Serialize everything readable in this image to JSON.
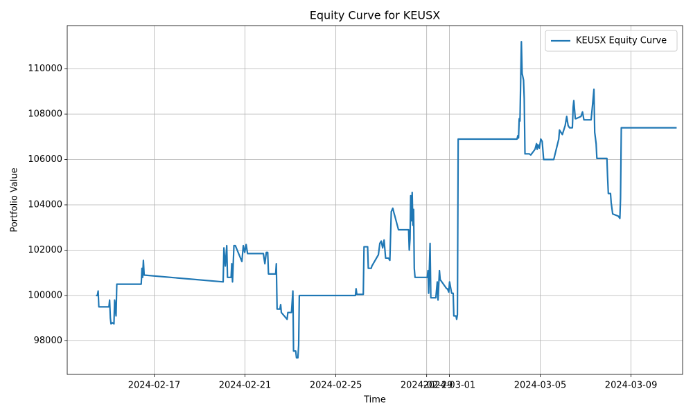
{
  "chart_data": {
    "type": "line",
    "title": "Equity Curve for KEUSX",
    "x_label": "Time",
    "y_label": "Portfolio Value",
    "x": [
      "2024-02-14 10:30",
      "2024-02-14 12:00",
      "2024-02-14 12:48",
      "2024-02-14 13:30",
      "2024-02-15 00:12",
      "2024-02-15 00:54",
      "2024-02-15 01:42",
      "2024-02-15 02:24",
      "2024-02-15 03:54",
      "2024-02-15 05:30",
      "2024-02-15 06:12",
      "2024-02-15 07:42",
      "2024-02-15 08:30",
      "2024-02-16 10:18",
      "2024-02-16 11:06",
      "2024-02-16 11:48",
      "2024-02-16 12:36",
      "2024-02-16 13:24",
      "2024-02-20 00:54",
      "2024-02-20 01:42",
      "2024-02-20 03:12",
      "2024-02-20 04:42",
      "2024-02-20 05:30",
      "2024-02-20 09:18",
      "2024-02-20 10:00",
      "2024-02-20 10:48",
      "2024-02-20 12:18",
      "2024-02-20 13:48",
      "2024-02-20 20:42",
      "2024-02-20 22:12",
      "2024-02-20 23:42",
      "2024-02-21 01:12",
      "2024-02-21 02:42",
      "2024-02-21 19:24",
      "2024-02-21 21:00",
      "2024-02-21 22:30",
      "2024-02-22 00:00",
      "2024-02-22 00:48",
      "2024-02-22 08:24",
      "2024-02-22 09:06",
      "2024-02-22 09:54",
      "2024-02-22 12:54",
      "2024-02-22 13:42",
      "2024-02-22 14:24",
      "2024-02-22 20:30",
      "2024-02-22 21:18",
      "2024-02-23 01:06",
      "2024-02-23 02:36",
      "2024-02-23 03:18",
      "2024-02-23 05:36",
      "2024-02-23 06:24",
      "2024-02-23 07:54",
      "2024-02-23 08:42",
      "2024-02-23 09:24",
      "2024-02-25 20:42",
      "2024-02-25 21:24",
      "2024-02-25 22:12",
      "2024-02-26 05:00",
      "2024-02-26 05:48",
      "2024-02-26 09:36",
      "2024-02-26 10:18",
      "2024-02-26 13:24",
      "2024-02-26 14:06",
      "2024-02-26 21:00",
      "2024-02-26 22:30",
      "2024-02-27 00:00",
      "2024-02-27 01:30",
      "2024-02-27 03:00",
      "2024-02-27 04:36",
      "2024-02-27 07:36",
      "2024-02-27 09:06",
      "2024-02-27 10:36",
      "2024-02-27 12:12",
      "2024-02-27 13:42",
      "2024-02-27 14:24",
      "2024-02-27 18:12",
      "2024-02-28 04:54",
      "2024-02-28 05:36",
      "2024-02-28 06:24",
      "2024-02-28 07:06",
      "2024-02-28 07:54",
      "2024-02-28 08:42",
      "2024-02-28 09:24",
      "2024-02-28 10:12",
      "2024-02-28 10:54",
      "2024-02-28 11:42",
      "2024-02-29 00:36",
      "2024-02-29 01:24",
      "2024-02-29 02:06",
      "2024-02-29 03:36",
      "2024-02-29 04:24",
      "2024-02-29 09:42",
      "2024-02-29 11:12",
      "2024-02-29 12:00",
      "2024-02-29 13:30",
      "2024-02-29 14:18",
      "2024-02-29 21:06",
      "2024-02-29 21:54",
      "2024-02-29 23:24",
      "2024-03-01 00:12",
      "2024-03-01 02:24",
      "2024-03-01 04:00",
      "2024-03-01 04:42",
      "2024-03-01 07:00",
      "2024-03-01 07:42",
      "2024-03-01 08:30",
      "2024-03-01 09:18",
      "2024-03-03 23:30",
      "2024-03-04 00:18",
      "2024-03-04 01:06",
      "2024-03-04 01:48",
      "2024-03-04 02:36",
      "2024-03-04 04:06",
      "2024-03-04 04:54",
      "2024-03-04 06:24",
      "2024-03-04 07:06",
      "2024-03-04 07:54",
      "2024-03-04 12:30",
      "2024-03-04 14:00",
      "2024-03-04 18:30",
      "2024-03-04 20:06",
      "2024-03-04 20:48",
      "2024-03-04 21:36",
      "2024-03-04 23:06",
      "2024-03-05 00:36",
      "2024-03-05 02:06",
      "2024-03-05 03:36",
      "2024-03-05 14:18",
      "2024-03-05 19:36",
      "2024-03-05 20:24",
      "2024-03-05 23:24",
      "2024-03-06 02:24",
      "2024-03-06 04:00",
      "2024-03-06 05:30",
      "2024-03-06 07:00",
      "2024-03-06 10:00",
      "2024-03-06 10:48",
      "2024-03-06 11:30",
      "2024-03-06 13:06",
      "2024-03-06 13:48",
      "2024-03-06 19:06",
      "2024-03-06 20:42",
      "2024-03-06 22:12",
      "2024-03-07 05:48",
      "2024-03-07 07:18",
      "2024-03-07 08:48",
      "2024-03-07 09:36",
      "2024-03-07 11:06",
      "2024-03-07 11:54",
      "2024-03-07 22:30",
      "2024-03-07 23:12",
      "2024-03-08 00:00",
      "2024-03-08 02:18",
      "2024-03-08 03:00",
      "2024-03-08 04:36",
      "2024-03-08 10:36",
      "2024-03-08 12:12",
      "2024-03-08 12:54",
      "2024-03-08 13:42",
      "2024-03-11 00:12"
    ],
    "series": [
      {
        "name": "KEUSX Equity Curve",
        "color": "#1f77b4",
        "values": [
          100000,
          100000,
          100200,
          99500,
          99500,
          99800,
          99000,
          98750,
          98800,
          98750,
          99800,
          99100,
          100500,
          100500,
          101200,
          100800,
          101550,
          100900,
          100600,
          102100,
          101300,
          102200,
          100800,
          100800,
          101400,
          100600,
          102200,
          102200,
          101500,
          102200,
          101900,
          102250,
          101850,
          101850,
          101400,
          101900,
          101900,
          100950,
          100950,
          101400,
          99400,
          99400,
          99600,
          99250,
          98950,
          99250,
          99250,
          100200,
          97550,
          97550,
          97250,
          97250,
          97800,
          100000,
          100000,
          100300,
          100050,
          100050,
          102150,
          102150,
          101200,
          101200,
          101300,
          101800,
          102300,
          102400,
          102100,
          102450,
          101650,
          101650,
          101550,
          103700,
          103850,
          103600,
          103500,
          102900,
          102900,
          102000,
          102500,
          104400,
          103300,
          104550,
          103100,
          103800,
          101200,
          100800,
          100800,
          101100,
          100100,
          102300,
          99900,
          99900,
          100600,
          99800,
          101100,
          100700,
          100300,
          100300,
          100150,
          100600,
          100100,
          100100,
          99100,
          99100,
          98950,
          99150,
          106900,
          106900,
          107050,
          106950,
          107800,
          107700,
          111200,
          109800,
          109500,
          108700,
          106250,
          106250,
          106200,
          106450,
          106700,
          106450,
          106650,
          106500,
          106900,
          106800,
          106000,
          106000,
          106900,
          107300,
          107100,
          107500,
          107900,
          107500,
          107400,
          107400,
          108300,
          108600,
          107800,
          107800,
          107900,
          108100,
          107750,
          107750,
          108400,
          109100,
          107200,
          106700,
          106050,
          106050,
          105250,
          104500,
          104500,
          104100,
          103600,
          103500,
          103400,
          104300,
          107400,
          107400
        ]
      }
    ],
    "xlim": [
      "2024-02-13 04:06",
      "2024-03-11 06:30"
    ],
    "xticks": [
      "2024-02-17",
      "2024-02-21",
      "2024-02-25",
      "2024-02-29",
      "2024-03-01",
      "2024-03-05",
      "2024-03-09"
    ],
    "ylim": [
      96519,
      111908
    ],
    "yticks": [
      98000,
      100000,
      102000,
      104000,
      106000,
      108000,
      110000
    ],
    "grid": true,
    "legend": "upper right"
  }
}
